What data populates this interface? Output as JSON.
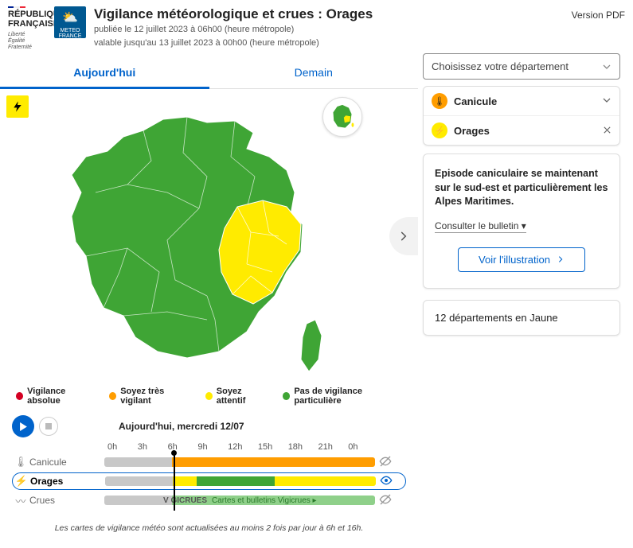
{
  "colors": {
    "green": "#3fa535",
    "yellow": "#ffeb00",
    "orange": "#ff9d00",
    "red": "#d40023",
    "gray": "#c8c8c8",
    "blue": "#0063cb"
  },
  "header": {
    "rf_title": "RÉPUBLIQUE\nFRANÇAISE",
    "rf_motto": "Liberté\nÉgalité\nFraternité",
    "mf_label": "METEO FRANCE",
    "title": "Vigilance météorologique et crues : Orages",
    "published": "publiée le 12 juillet 2023 à 06h00 (heure métropole)",
    "valid": "valable jusqu'au 13 juillet 2023 à 00h00 (heure métropole)",
    "pdf": "Version PDF"
  },
  "tabs": {
    "today": "Aujourd'hui",
    "tomorrow": "Demain"
  },
  "legend": [
    {
      "label": "Vigilance absolue",
      "color": "#d40023"
    },
    {
      "label": "Soyez très vigilant",
      "color": "#ff9d00"
    },
    {
      "label": "Soyez attentif",
      "color": "#ffeb00"
    },
    {
      "label": "Pas de vigilance particulière",
      "color": "#3fa535"
    }
  ],
  "timeline": {
    "title": "Aujourd'hui, mercredi 12/07",
    "hours": [
      "0h",
      "3h",
      "6h",
      "9h",
      "12h",
      "15h",
      "18h",
      "21h",
      "0h"
    ],
    "cursor_hour_index": 2,
    "rows": [
      {
        "icon": "🌡",
        "label": "Canicule",
        "selected": false,
        "eye": "hidden",
        "segments": [
          {
            "color": "#c8c8c8",
            "flex": 2
          },
          {
            "color": "#ff9d00",
            "flex": 6
          }
        ]
      },
      {
        "icon": "⚡",
        "label": "Orages",
        "selected": true,
        "eye": "visible",
        "segments": [
          {
            "color": "#c8c8c8",
            "flex": 2
          },
          {
            "color": "#ffeb00",
            "flex": 0.7
          },
          {
            "color": "#3fa535",
            "flex": 2.3
          },
          {
            "color": "#ffeb00",
            "flex": 3
          }
        ]
      },
      {
        "icon": "〰",
        "label": "Crues",
        "selected": false,
        "eye": "hidden",
        "vigicrues": true,
        "vigicrues_brand": "V GICRUES",
        "vigicrues_link": "Cartes et bulletins Vigicrues ▸",
        "segments": [
          {
            "color": "#c8c8c8",
            "flex": 2
          },
          {
            "color": "#8fd08a",
            "flex": 6
          }
        ]
      }
    ],
    "footnote": "Les cartes de vigilance météo sont actualisées au moins 2 fois par jour à 6h et 16h."
  },
  "sidebar": {
    "dept_placeholder": "Choisissez votre département",
    "alerts": [
      {
        "icon": "🌡",
        "label": "Canicule",
        "badge_bg": "#ff9d00",
        "action": "chevron"
      },
      {
        "icon": "⚡",
        "label": "Orages",
        "badge_bg": "#ffeb00",
        "action": "close"
      }
    ],
    "info_text": "Episode caniculaire se maintenant sur le sud-est et particulièrement les Alpes Maritimes.",
    "consult": "Consulter le bulletin ▾",
    "illustration_btn": "Voir l'illustration",
    "count_text": "12 départements en Jaune"
  }
}
